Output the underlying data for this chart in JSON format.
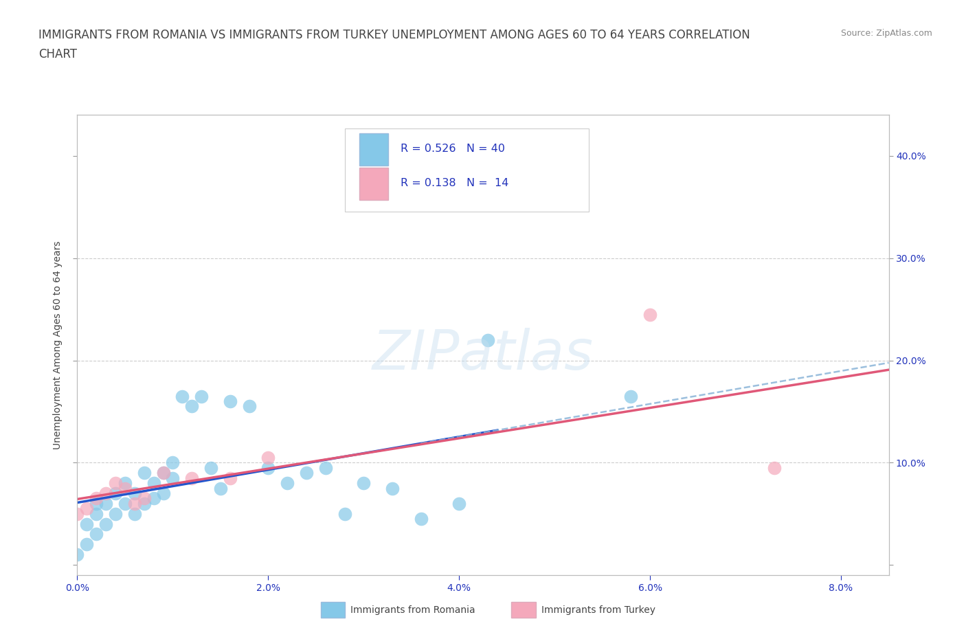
{
  "title_line1": "IMMIGRANTS FROM ROMANIA VS IMMIGRANTS FROM TURKEY UNEMPLOYMENT AMONG AGES 60 TO 64 YEARS CORRELATION",
  "title_line2": "CHART",
  "source": "Source: ZipAtlas.com",
  "ylabel": "Unemployment Among Ages 60 to 64 years",
  "xlim": [
    0.0,
    0.085
  ],
  "ylim": [
    -0.01,
    0.44
  ],
  "xticks": [
    0.0,
    0.02,
    0.04,
    0.06,
    0.08
  ],
  "xtick_labels": [
    "0.0%",
    "2.0%",
    "4.0%",
    "6.0%",
    "8.0%"
  ],
  "yticks": [
    0.0,
    0.1,
    0.2,
    0.3,
    0.4
  ],
  "right_ytick_labels": [
    "",
    "10.0%",
    "20.0%",
    "30.0%",
    "40.0%"
  ],
  "romania_color": "#85c8e8",
  "turkey_color": "#f4a8bb",
  "romania_line_color": "#2255cc",
  "turkey_line_color": "#e05878",
  "dashed_ext_color": "#8ab4d8",
  "romania_R": 0.526,
  "romania_N": 40,
  "turkey_R": 0.138,
  "turkey_N": 14,
  "legend_R_color": "#2233bb",
  "romania_scatter_x": [
    0.0,
    0.001,
    0.001,
    0.002,
    0.002,
    0.002,
    0.003,
    0.003,
    0.004,
    0.004,
    0.005,
    0.005,
    0.006,
    0.006,
    0.007,
    0.007,
    0.008,
    0.008,
    0.009,
    0.009,
    0.01,
    0.01,
    0.011,
    0.012,
    0.013,
    0.014,
    0.015,
    0.016,
    0.018,
    0.02,
    0.022,
    0.024,
    0.026,
    0.028,
    0.03,
    0.033,
    0.036,
    0.04,
    0.043,
    0.058
  ],
  "romania_scatter_y": [
    0.01,
    0.02,
    0.04,
    0.03,
    0.05,
    0.06,
    0.04,
    0.06,
    0.05,
    0.07,
    0.06,
    0.08,
    0.05,
    0.07,
    0.06,
    0.09,
    0.065,
    0.08,
    0.07,
    0.09,
    0.085,
    0.1,
    0.165,
    0.155,
    0.165,
    0.095,
    0.075,
    0.16,
    0.155,
    0.095,
    0.08,
    0.09,
    0.095,
    0.05,
    0.08,
    0.075,
    0.045,
    0.06,
    0.22,
    0.165
  ],
  "turkey_scatter_x": [
    0.0,
    0.001,
    0.002,
    0.003,
    0.004,
    0.005,
    0.006,
    0.007,
    0.009,
    0.012,
    0.016,
    0.02,
    0.06,
    0.073
  ],
  "turkey_scatter_y": [
    0.05,
    0.055,
    0.065,
    0.07,
    0.08,
    0.075,
    0.06,
    0.065,
    0.09,
    0.085,
    0.085,
    0.105,
    0.245,
    0.095
  ],
  "background_color": "#ffffff",
  "grid_color": "#cccccc",
  "watermark_text": "ZIPatlas",
  "title_fontsize": 12,
  "axis_label_fontsize": 10,
  "tick_fontsize": 10
}
